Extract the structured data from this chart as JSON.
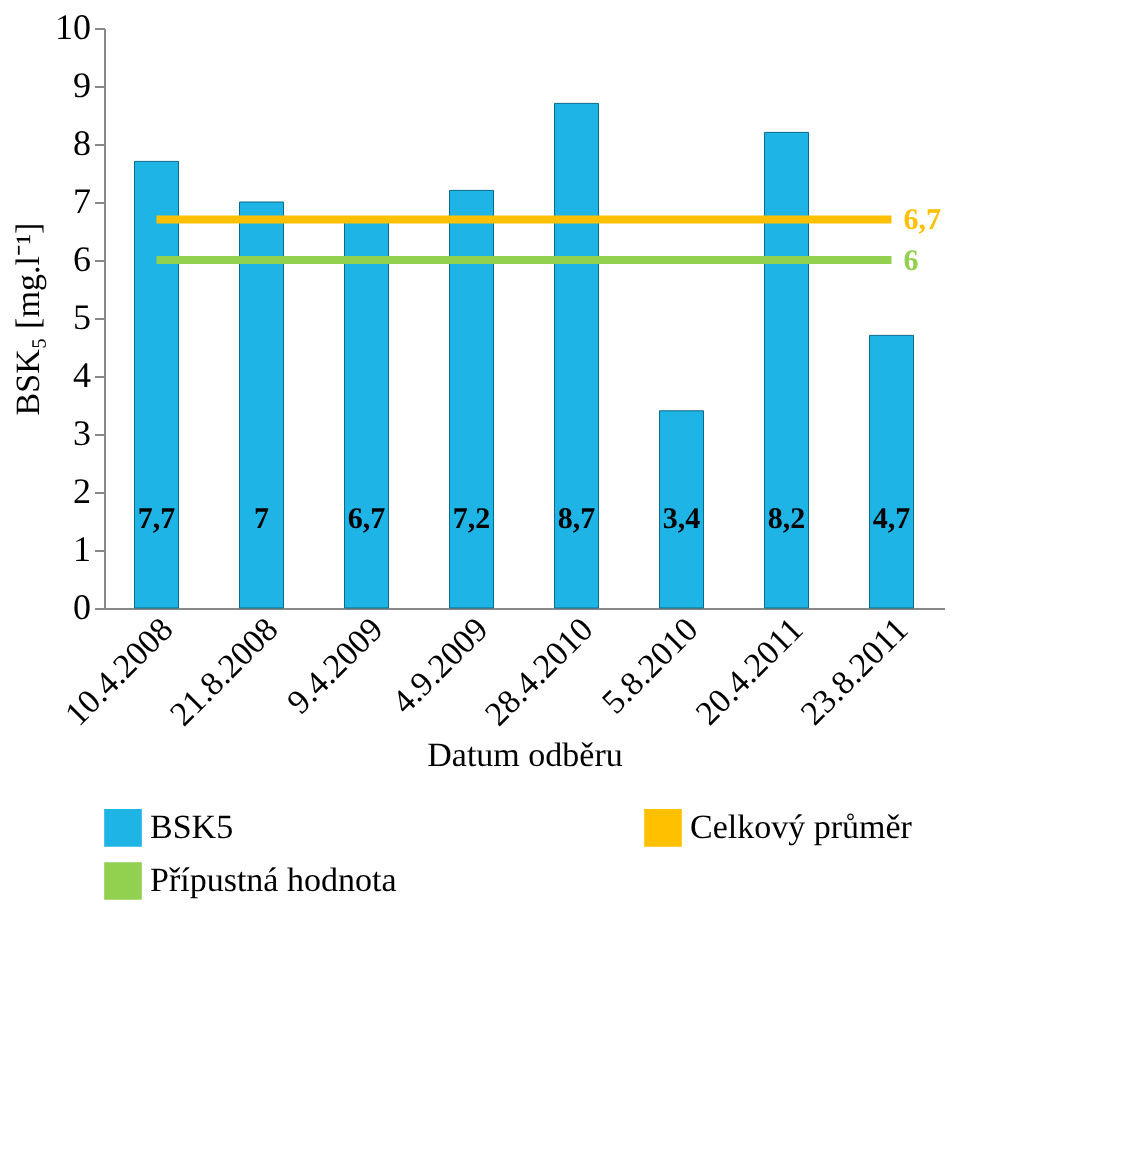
{
  "chart_data": {
    "type": "bar",
    "xlabel": "Datum odběru",
    "ylabel": "BSK₅ [mg.l⁻¹]",
    "categories": [
      "10.4.2008",
      "21.8.2008",
      "9.4.2009",
      "4.9.2009",
      "28.4.2010",
      "5.8.2010",
      "20.4.2011",
      "23.8.2011"
    ],
    "series": [
      {
        "name": "BSK5",
        "color": "#1eb4e6",
        "values": [
          7.7,
          7,
          6.7,
          7.2,
          8.7,
          3.4,
          8.2,
          4.7
        ],
        "value_labels": [
          "7,7",
          "7",
          "6,7",
          "7,2",
          "8,7",
          "3,4",
          "8,2",
          "4,7"
        ]
      },
      {
        "name": "Celkový průměr",
        "type": "line",
        "color": "#ffc000",
        "values": [
          6.7,
          6.7,
          6.7,
          6.7,
          6.7,
          6.7,
          6.7,
          6.7
        ],
        "value_labels": [
          null,
          null,
          null,
          null,
          null,
          null,
          null,
          "6,7"
        ]
      },
      {
        "name": "Přípustná hodnota",
        "type": "line",
        "color": "#92d050",
        "values": [
          6,
          6,
          6,
          6,
          6,
          6,
          6,
          6
        ],
        "value_labels": [
          null,
          null,
          null,
          null,
          null,
          null,
          null,
          "6"
        ]
      }
    ],
    "ylim": [
      0,
      10
    ],
    "yticks": [
      0,
      1,
      2,
      3,
      4,
      5,
      6,
      7,
      8,
      9,
      10
    ],
    "grid": false,
    "legend": "bottom"
  }
}
